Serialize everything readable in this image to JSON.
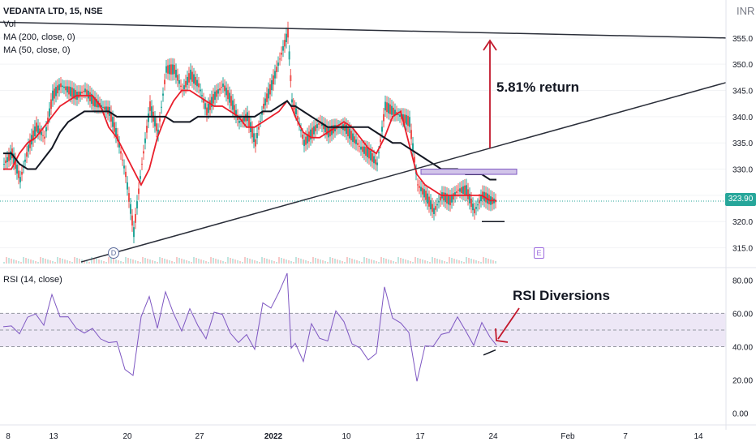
{
  "legend": {
    "symbol": "VEDANTA LTD, 15, NSE",
    "vol": "Vol",
    "ma200": "MA (200, close, 0)",
    "ma50": "MA (50, close, 0)"
  },
  "rsi_legend": "RSI (14, close)",
  "currency": "INR",
  "last_price": "323.90",
  "annotations": {
    "return_text": "5.81% return",
    "rsi_text": "RSI Diversions"
  },
  "badges": {
    "dividend": "D",
    "earnings": "E"
  },
  "colors": {
    "up": "#26a69a",
    "down": "#ef5350",
    "ma50": "#e91e2b",
    "ma200": "#131722",
    "rsi": "#7e57c2",
    "rsi_band": "#ede7f6",
    "trendline": "#2a2e39",
    "arrow": "#c2172b"
  },
  "chart_data": [
    {
      "type": "line",
      "title": "VEDANTA LTD, 15, NSE",
      "x_ticks": [
        "8",
        "13",
        "20",
        "27",
        "2022",
        "10",
        "17",
        "24",
        "Feb",
        "7",
        "14"
      ],
      "y_ticks": [
        315,
        320,
        325,
        330,
        335,
        340,
        345,
        350,
        355
      ],
      "ylim": [
        312,
        361
      ],
      "series": [
        {
          "name": "Close",
          "x_index": [
            0,
            10,
            20,
            30,
            40,
            50,
            60,
            70,
            80,
            90,
            100,
            110,
            120,
            130,
            140,
            150,
            160,
            170,
            180,
            190,
            200,
            210,
            220,
            230,
            240,
            250,
            260,
            270,
            280,
            290,
            300,
            310,
            320,
            330,
            340,
            350,
            355,
            360,
            370,
            380,
            390,
            400,
            410,
            420,
            430,
            440,
            450,
            460,
            470,
            480,
            490,
            500,
            510,
            520,
            530,
            540,
            550,
            560,
            570,
            580,
            590,
            600,
            608
          ],
          "values": [
            331,
            333,
            328,
            334,
            338,
            336,
            344,
            346,
            345,
            344,
            345,
            343,
            342,
            341,
            336,
            329,
            318,
            331,
            342,
            337,
            349,
            349,
            345,
            348,
            346,
            341,
            344,
            346,
            343,
            339,
            340,
            335,
            342,
            346,
            351,
            356,
            343,
            341,
            335,
            337,
            339,
            337,
            338,
            338,
            336,
            334,
            333,
            331,
            342,
            341,
            340,
            339,
            327,
            325,
            322,
            325,
            324,
            326,
            326,
            322,
            325,
            324,
            323.9
          ]
        },
        {
          "name": "MA (50, close, 0)",
          "values": [
            330,
            330,
            333,
            335,
            336,
            338,
            340,
            342,
            343,
            344,
            344,
            344,
            342,
            338,
            336,
            333,
            330,
            327,
            330,
            336,
            340,
            343,
            345,
            345,
            344,
            343,
            342,
            342,
            341,
            340,
            338,
            338,
            339,
            340,
            341,
            343,
            342,
            340,
            337,
            336,
            336,
            337,
            338,
            339,
            338,
            336,
            334,
            333,
            336,
            340,
            341,
            335,
            329,
            327,
            326,
            325,
            325,
            325,
            325,
            325,
            325,
            324,
            324
          ]
        },
        {
          "name": "MA (200, close, 0)",
          "values": [
            333,
            333,
            331,
            330,
            330,
            332,
            334,
            337,
            339,
            340,
            341,
            341,
            341,
            341,
            340,
            340,
            340,
            340,
            340,
            340,
            340,
            339,
            339,
            339,
            340,
            340,
            340,
            340,
            340,
            340,
            340,
            340,
            341,
            341,
            342,
            343,
            342,
            342,
            341,
            340,
            339,
            338,
            338,
            338,
            338,
            338,
            338,
            337,
            336,
            335,
            335,
            334,
            333,
            332,
            331,
            330,
            330,
            330,
            329,
            329,
            329,
            328,
            328
          ]
        }
      ],
      "levels": {
        "resistance_zone": [
          329,
          330
        ],
        "support": 320,
        "target": 355,
        "last_price": 323.9
      }
    },
    {
      "type": "line",
      "title": "RSI (14, close)",
      "y_ticks": [
        0,
        20,
        40,
        60,
        80
      ],
      "ylim": [
        -5,
        85
      ],
      "band": [
        40,
        60
      ],
      "midline": 50,
      "series": [
        {
          "name": "RSI (14, close)",
          "x_index": [
            0,
            10,
            20,
            30,
            40,
            50,
            60,
            70,
            80,
            90,
            100,
            110,
            120,
            130,
            140,
            150,
            160,
            170,
            180,
            190,
            200,
            210,
            220,
            230,
            240,
            250,
            260,
            270,
            280,
            290,
            300,
            310,
            320,
            330,
            340,
            350,
            355,
            360,
            370,
            380,
            390,
            400,
            410,
            420,
            430,
            440,
            450,
            460,
            470,
            480,
            490,
            500,
            510,
            520,
            530,
            540,
            550,
            560,
            570,
            580,
            590,
            600,
            608
          ],
          "values": [
            52,
            55,
            45,
            58,
            62,
            50,
            72,
            60,
            55,
            52,
            50,
            48,
            46,
            44,
            40,
            28,
            24,
            55,
            72,
            52,
            70,
            62,
            50,
            60,
            55,
            45,
            58,
            62,
            48,
            40,
            50,
            38,
            64,
            66,
            72,
            82,
            40,
            45,
            30,
            52,
            48,
            42,
            60,
            58,
            40,
            38,
            35,
            34,
            75,
            60,
            52,
            48,
            22,
            38,
            40,
            50,
            46,
            58,
            52,
            38,
            55,
            48,
            42
          ]
        }
      ]
    }
  ]
}
